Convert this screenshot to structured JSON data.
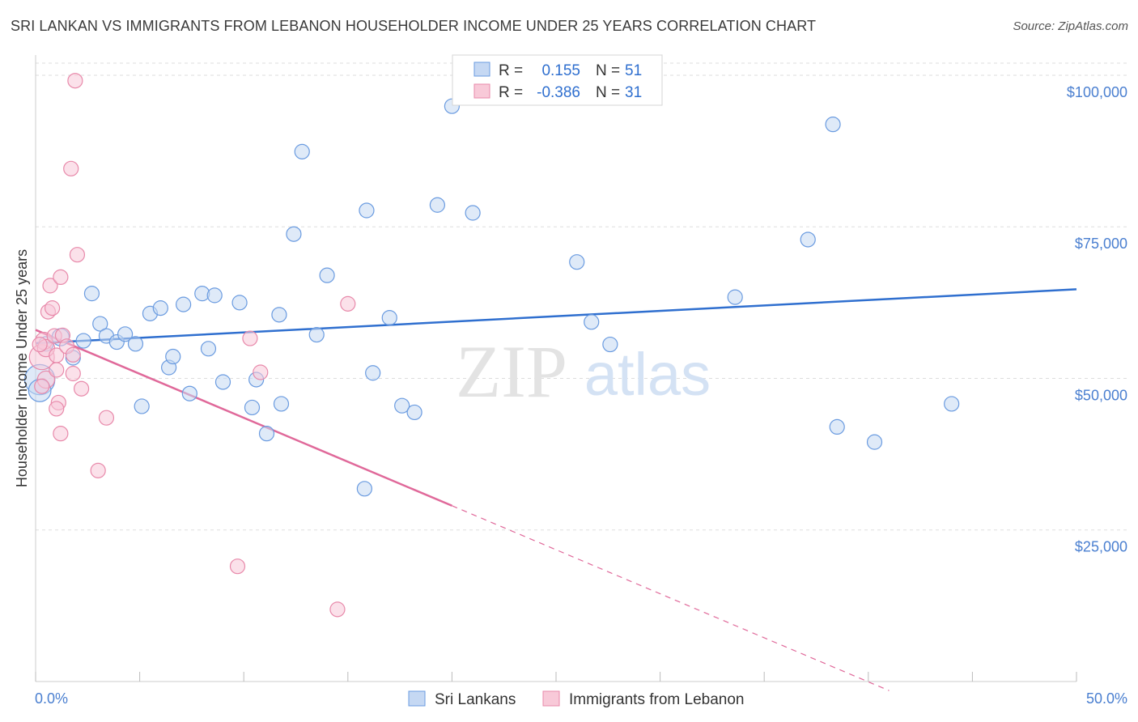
{
  "title": "SRI LANKAN VS IMMIGRANTS FROM LEBANON HOUSEHOLDER INCOME UNDER 25 YEARS CORRELATION CHART",
  "source": "Source: ZipAtlas.com",
  "watermark": {
    "zip": "ZIP",
    "atlas": "atlas"
  },
  "colors": {
    "blue": "#2f6fcf",
    "blue_fill": "#c5d8f3",
    "blue_stroke": "#6a9be0",
    "pink": "#e0699a",
    "pink_fill": "#f8c9d8",
    "pink_stroke": "#e889aa",
    "grid": "#dddddd",
    "axis_text": "#4a7fd0"
  },
  "legend": {
    "rows": [
      {
        "r_label": "R =",
        "r_value": "0.155",
        "n_label": "N =",
        "n_value": "51"
      },
      {
        "r_label": "R =",
        "r_value": "-0.386",
        "n_label": "N =",
        "n_value": "31"
      }
    ]
  },
  "bottom_legend": [
    "Sri Lankans",
    "Immigrants from Lebanon"
  ],
  "chart_data": {
    "type": "scatter",
    "title": "SRI LANKAN VS IMMIGRANTS FROM LEBANON HOUSEHOLDER INCOME UNDER 25 YEARS CORRELATION CHART",
    "xlabel": "",
    "ylabel": "Householder Income Under 25 years",
    "xlim": [
      0,
      50
    ],
    "ylim": [
      0,
      102000
    ],
    "x_tick_labels": [
      "0.0%",
      "50.0%"
    ],
    "y_ticks": [
      25000,
      50000,
      75000,
      100000
    ],
    "y_tick_labels": [
      "$25,000",
      "$50,000",
      "$75,000",
      "$100,000"
    ],
    "series": [
      {
        "name": "Sri Lankans",
        "r": 0.155,
        "n": 51,
        "trend": {
          "x0": 0,
          "y0": 55800,
          "x1": 50,
          "y1": 64700
        },
        "points": [
          [
            0.2,
            49800,
            22
          ],
          [
            0.2,
            48000,
            16
          ],
          [
            1.2,
            56800,
            12
          ],
          [
            1.8,
            53400,
            10
          ],
          [
            2.3,
            56200,
            10
          ],
          [
            2.7,
            64000,
            10
          ],
          [
            3.1,
            59000,
            10
          ],
          [
            3.4,
            57000,
            10
          ],
          [
            3.9,
            56000,
            10
          ],
          [
            4.3,
            57300,
            10
          ],
          [
            4.8,
            55700,
            10
          ],
          [
            5.1,
            45400,
            10
          ],
          [
            5.5,
            60700,
            10
          ],
          [
            6.0,
            61600,
            10
          ],
          [
            6.4,
            51800,
            10
          ],
          [
            6.6,
            53600,
            10
          ],
          [
            7.1,
            62200,
            10
          ],
          [
            7.4,
            47500,
            10
          ],
          [
            8.0,
            64000,
            10
          ],
          [
            8.3,
            54900,
            10
          ],
          [
            8.6,
            63700,
            10
          ],
          [
            9.0,
            49400,
            10
          ],
          [
            9.8,
            62500,
            10
          ],
          [
            10.4,
            45200,
            10
          ],
          [
            10.6,
            49800,
            10
          ],
          [
            11.1,
            40900,
            10
          ],
          [
            11.8,
            45800,
            10
          ],
          [
            11.7,
            60500,
            10
          ],
          [
            12.4,
            73800,
            10
          ],
          [
            12.8,
            87400,
            10
          ],
          [
            13.5,
            57200,
            10
          ],
          [
            14.0,
            67000,
            10
          ],
          [
            15.8,
            31800,
            10
          ],
          [
            15.9,
            77700,
            10
          ],
          [
            16.2,
            50900,
            10
          ],
          [
            17.0,
            60000,
            10
          ],
          [
            17.6,
            45500,
            10
          ],
          [
            18.2,
            44400,
            10
          ],
          [
            19.3,
            78600,
            10
          ],
          [
            20.0,
            94900,
            10
          ],
          [
            21.0,
            77300,
            10
          ],
          [
            26.0,
            69200,
            10
          ],
          [
            26.7,
            59300,
            10
          ],
          [
            27.6,
            55600,
            10
          ],
          [
            33.6,
            63400,
            10
          ],
          [
            37.1,
            72900,
            10
          ],
          [
            38.3,
            91900,
            10
          ],
          [
            38.5,
            42000,
            10
          ],
          [
            40.3,
            39500,
            10
          ],
          [
            44.0,
            45800,
            10
          ],
          [
            0.5,
            55700,
            10
          ]
        ]
      },
      {
        "name": "Immigrants from Lebanon",
        "r": -0.386,
        "n": 31,
        "trend": {
          "x0": 0,
          "y0": 58000,
          "x1": 20,
          "y1": 29000,
          "dash_x1": 41,
          "dash_y1": -1500
        },
        "points": [
          [
            0.3,
            53500,
            18
          ],
          [
            0.4,
            56200,
            12
          ],
          [
            0.5,
            55000,
            12
          ],
          [
            0.5,
            49800,
            12
          ],
          [
            0.6,
            61000,
            10
          ],
          [
            0.7,
            65300,
            10
          ],
          [
            0.8,
            61600,
            10
          ],
          [
            0.9,
            57000,
            10
          ],
          [
            1.0,
            53800,
            10
          ],
          [
            1.0,
            51400,
            10
          ],
          [
            1.1,
            46000,
            10
          ],
          [
            1.0,
            45000,
            10
          ],
          [
            1.2,
            66700,
            10
          ],
          [
            1.2,
            40900,
            10
          ],
          [
            1.3,
            57100,
            10
          ],
          [
            1.5,
            55300,
            10
          ],
          [
            1.8,
            53900,
            10
          ],
          [
            1.7,
            84600,
            10
          ],
          [
            1.8,
            50800,
            10
          ],
          [
            1.9,
            99100,
            10
          ],
          [
            2.0,
            70400,
            10
          ],
          [
            2.2,
            48300,
            10
          ],
          [
            3.0,
            34800,
            10
          ],
          [
            3.4,
            43500,
            10
          ],
          [
            9.7,
            19000,
            10
          ],
          [
            10.3,
            56600,
            10
          ],
          [
            10.8,
            51000,
            10
          ],
          [
            15.0,
            62300,
            10
          ],
          [
            14.5,
            11900,
            10
          ],
          [
            0.2,
            55600,
            10
          ],
          [
            0.3,
            48700,
            10
          ]
        ]
      }
    ]
  }
}
